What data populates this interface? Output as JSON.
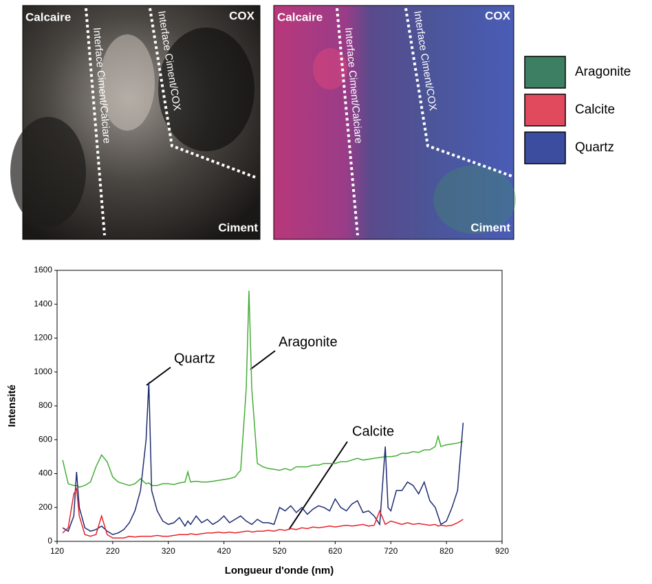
{
  "images": [
    {
      "top_left": "Calcaire",
      "top_right": "COX",
      "bottom_right": "Ciment",
      "interface_1": "Interface Ciment/Calciare",
      "interface_2": "Interface Ciment/COX"
    },
    {
      "top_left": "Calcaire",
      "top_right": "COX",
      "bottom_right": "Ciment",
      "interface_1": "Interface Ciment/Calciare",
      "interface_2": "Interface Ciment/COX"
    }
  ],
  "image_legend": [
    {
      "label": "Aragonite",
      "color": "#3d7f62"
    },
    {
      "label": "Calcite",
      "color": "#e04a5c"
    },
    {
      "label": "Quartz",
      "color": "#3c4da0"
    }
  ],
  "chart_data": {
    "type": "line",
    "x_label": "Longueur d'onde (nm)",
    "y_label": "Intensité",
    "xlim": [
      120,
      920
    ],
    "ylim": [
      0,
      1600
    ],
    "xticks": [
      120,
      220,
      320,
      420,
      520,
      620,
      720,
      820,
      920
    ],
    "yticks": [
      0,
      200,
      400,
      600,
      800,
      1000,
      1200,
      1400,
      1600
    ],
    "x": [
      130,
      140,
      150,
      155,
      160,
      170,
      180,
      190,
      200,
      210,
      220,
      230,
      240,
      250,
      260,
      270,
      280,
      285,
      290,
      300,
      310,
      320,
      330,
      340,
      350,
      355,
      360,
      370,
      380,
      390,
      400,
      410,
      420,
      430,
      440,
      450,
      460,
      465,
      470,
      480,
      490,
      500,
      510,
      520,
      530,
      540,
      550,
      560,
      570,
      580,
      590,
      600,
      610,
      620,
      630,
      640,
      650,
      660,
      670,
      680,
      690,
      700,
      710,
      715,
      720,
      730,
      740,
      750,
      760,
      770,
      780,
      790,
      800,
      805,
      810,
      820,
      830,
      840,
      850
    ],
    "series": [
      {
        "name": "Aragonite",
        "color": "#44ad35",
        "values": [
          480,
          340,
          330,
          330,
          320,
          330,
          350,
          440,
          510,
          470,
          380,
          350,
          340,
          330,
          340,
          370,
          340,
          345,
          330,
          330,
          340,
          340,
          335,
          345,
          350,
          410,
          350,
          355,
          350,
          350,
          355,
          360,
          365,
          370,
          380,
          420,
          900,
          1480,
          900,
          460,
          440,
          430,
          425,
          420,
          430,
          420,
          440,
          440,
          440,
          450,
          450,
          460,
          460,
          460,
          470,
          470,
          480,
          490,
          480,
          485,
          490,
          495,
          500,
          500,
          500,
          505,
          520,
          520,
          530,
          525,
          540,
          540,
          560,
          620,
          560,
          570,
          575,
          580,
          590
        ]
      },
      {
        "name": "Quartz",
        "color": "#1c2a6e",
        "values": [
          80,
          60,
          150,
          410,
          200,
          80,
          60,
          70,
          90,
          60,
          40,
          50,
          70,
          110,
          180,
          300,
          600,
          940,
          300,
          180,
          120,
          100,
          110,
          140,
          90,
          120,
          100,
          150,
          110,
          130,
          100,
          120,
          150,
          110,
          130,
          150,
          120,
          110,
          100,
          130,
          110,
          110,
          100,
          200,
          180,
          210,
          170,
          200,
          160,
          190,
          210,
          200,
          180,
          250,
          200,
          180,
          220,
          240,
          170,
          180,
          150,
          100,
          560,
          200,
          180,
          300,
          300,
          350,
          330,
          280,
          350,
          240,
          200,
          150,
          100,
          120,
          200,
          300,
          700
        ]
      },
      {
        "name": "Calcite",
        "color": "#e8202a",
        "values": [
          50,
          80,
          280,
          310,
          150,
          40,
          30,
          40,
          150,
          40,
          20,
          20,
          20,
          30,
          25,
          30,
          30,
          30,
          30,
          35,
          30,
          30,
          35,
          40,
          40,
          40,
          45,
          40,
          45,
          50,
          50,
          55,
          50,
          55,
          50,
          55,
          60,
          60,
          55,
          60,
          60,
          65,
          60,
          70,
          65,
          75,
          70,
          80,
          75,
          85,
          80,
          85,
          90,
          85,
          90,
          95,
          90,
          95,
          100,
          90,
          95,
          180,
          100,
          110,
          120,
          110,
          100,
          110,
          100,
          105,
          100,
          95,
          100,
          90,
          95,
          90,
          95,
          110,
          130
        ]
      }
    ]
  }
}
